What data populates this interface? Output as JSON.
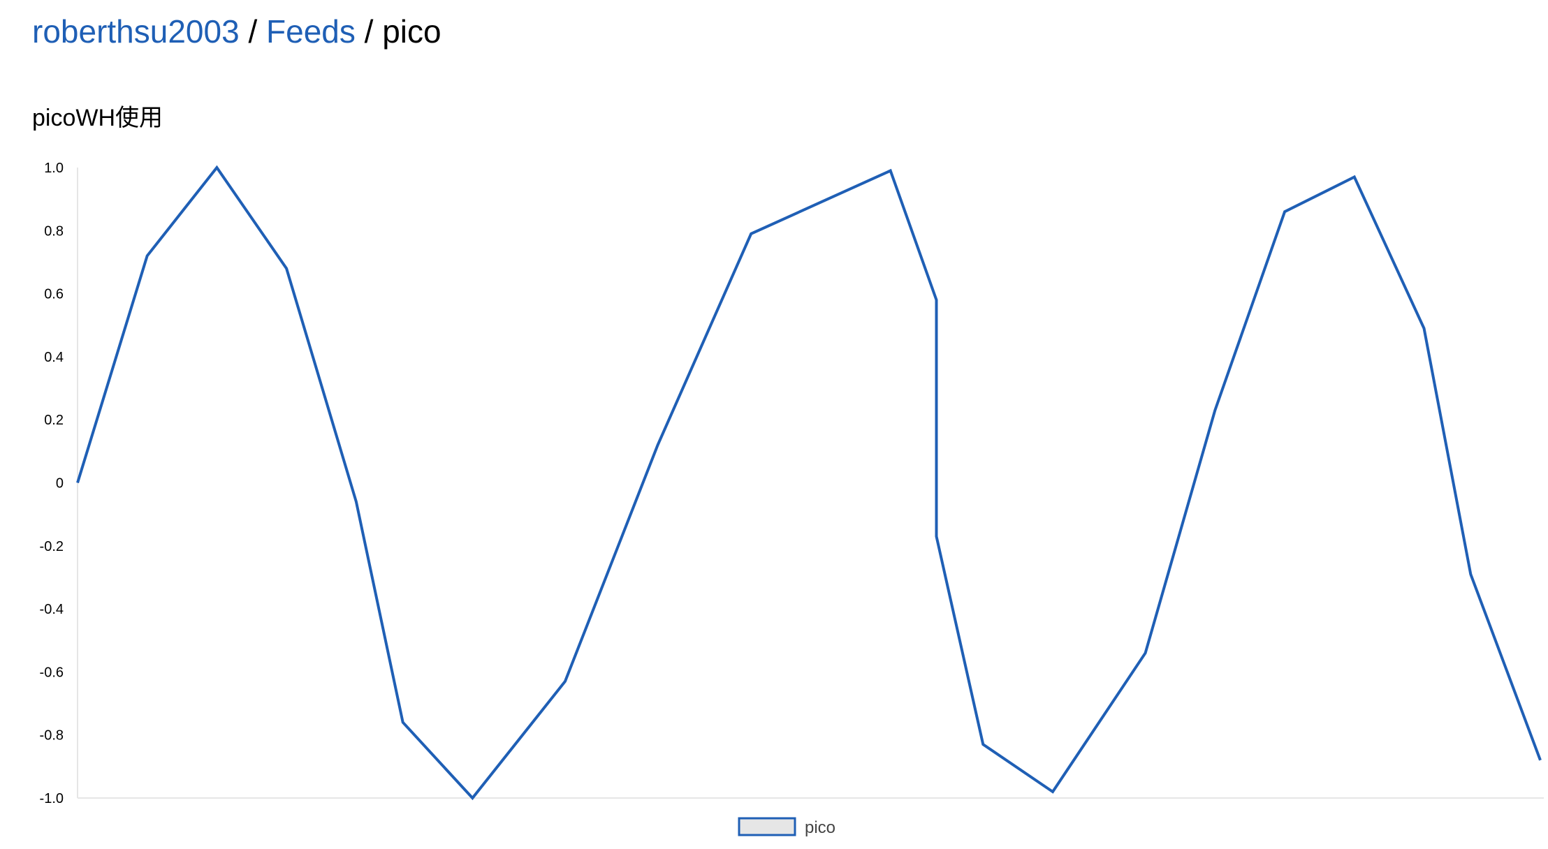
{
  "breadcrumb": {
    "user": "roberthsu2003",
    "feeds": "Feeds",
    "separator": "/",
    "current": "pico"
  },
  "chart_data": {
    "type": "line",
    "title": "picoWH使用",
    "xlabel": "",
    "ylabel": "",
    "ylim": [
      -1.0,
      1.0
    ],
    "yticks": [
      1.0,
      0.8,
      0.6,
      0.4,
      0.2,
      0,
      -0.2,
      -0.4,
      -0.6,
      -0.8,
      -1.0
    ],
    "ytick_labels": [
      "1.0",
      "0.8",
      "0.6",
      "0.4",
      "0.2",
      "0",
      "-0.2",
      "-0.4",
      "-0.6",
      "-0.8",
      "-1.0"
    ],
    "grid": false,
    "legend_position": "bottom-center",
    "colors": {
      "line": "#1f5fb5",
      "legend_fill": "#e6e6e6",
      "axis": "#e6e6e6"
    },
    "series": [
      {
        "name": "pico",
        "points": [
          [
            0,
            0.0
          ],
          [
            1,
            0.72
          ],
          [
            2,
            1.0
          ],
          [
            3,
            0.68
          ],
          [
            4,
            -0.06
          ],
          [
            4.67,
            -0.76
          ],
          [
            5.67,
            -1.0
          ],
          [
            7,
            -0.63
          ],
          [
            8.33,
            0.12
          ],
          [
            9.67,
            0.79
          ],
          [
            11.67,
            0.99
          ],
          [
            12.33,
            0.58
          ],
          [
            12.33,
            -0.17
          ],
          [
            13,
            -0.83
          ],
          [
            14,
            -0.98
          ],
          [
            15.33,
            -0.54
          ],
          [
            16.33,
            0.23
          ],
          [
            17.33,
            0.86
          ],
          [
            18.33,
            0.97
          ],
          [
            19.33,
            0.49
          ],
          [
            20,
            -0.29
          ],
          [
            21,
            -0.88
          ]
        ]
      }
    ]
  }
}
